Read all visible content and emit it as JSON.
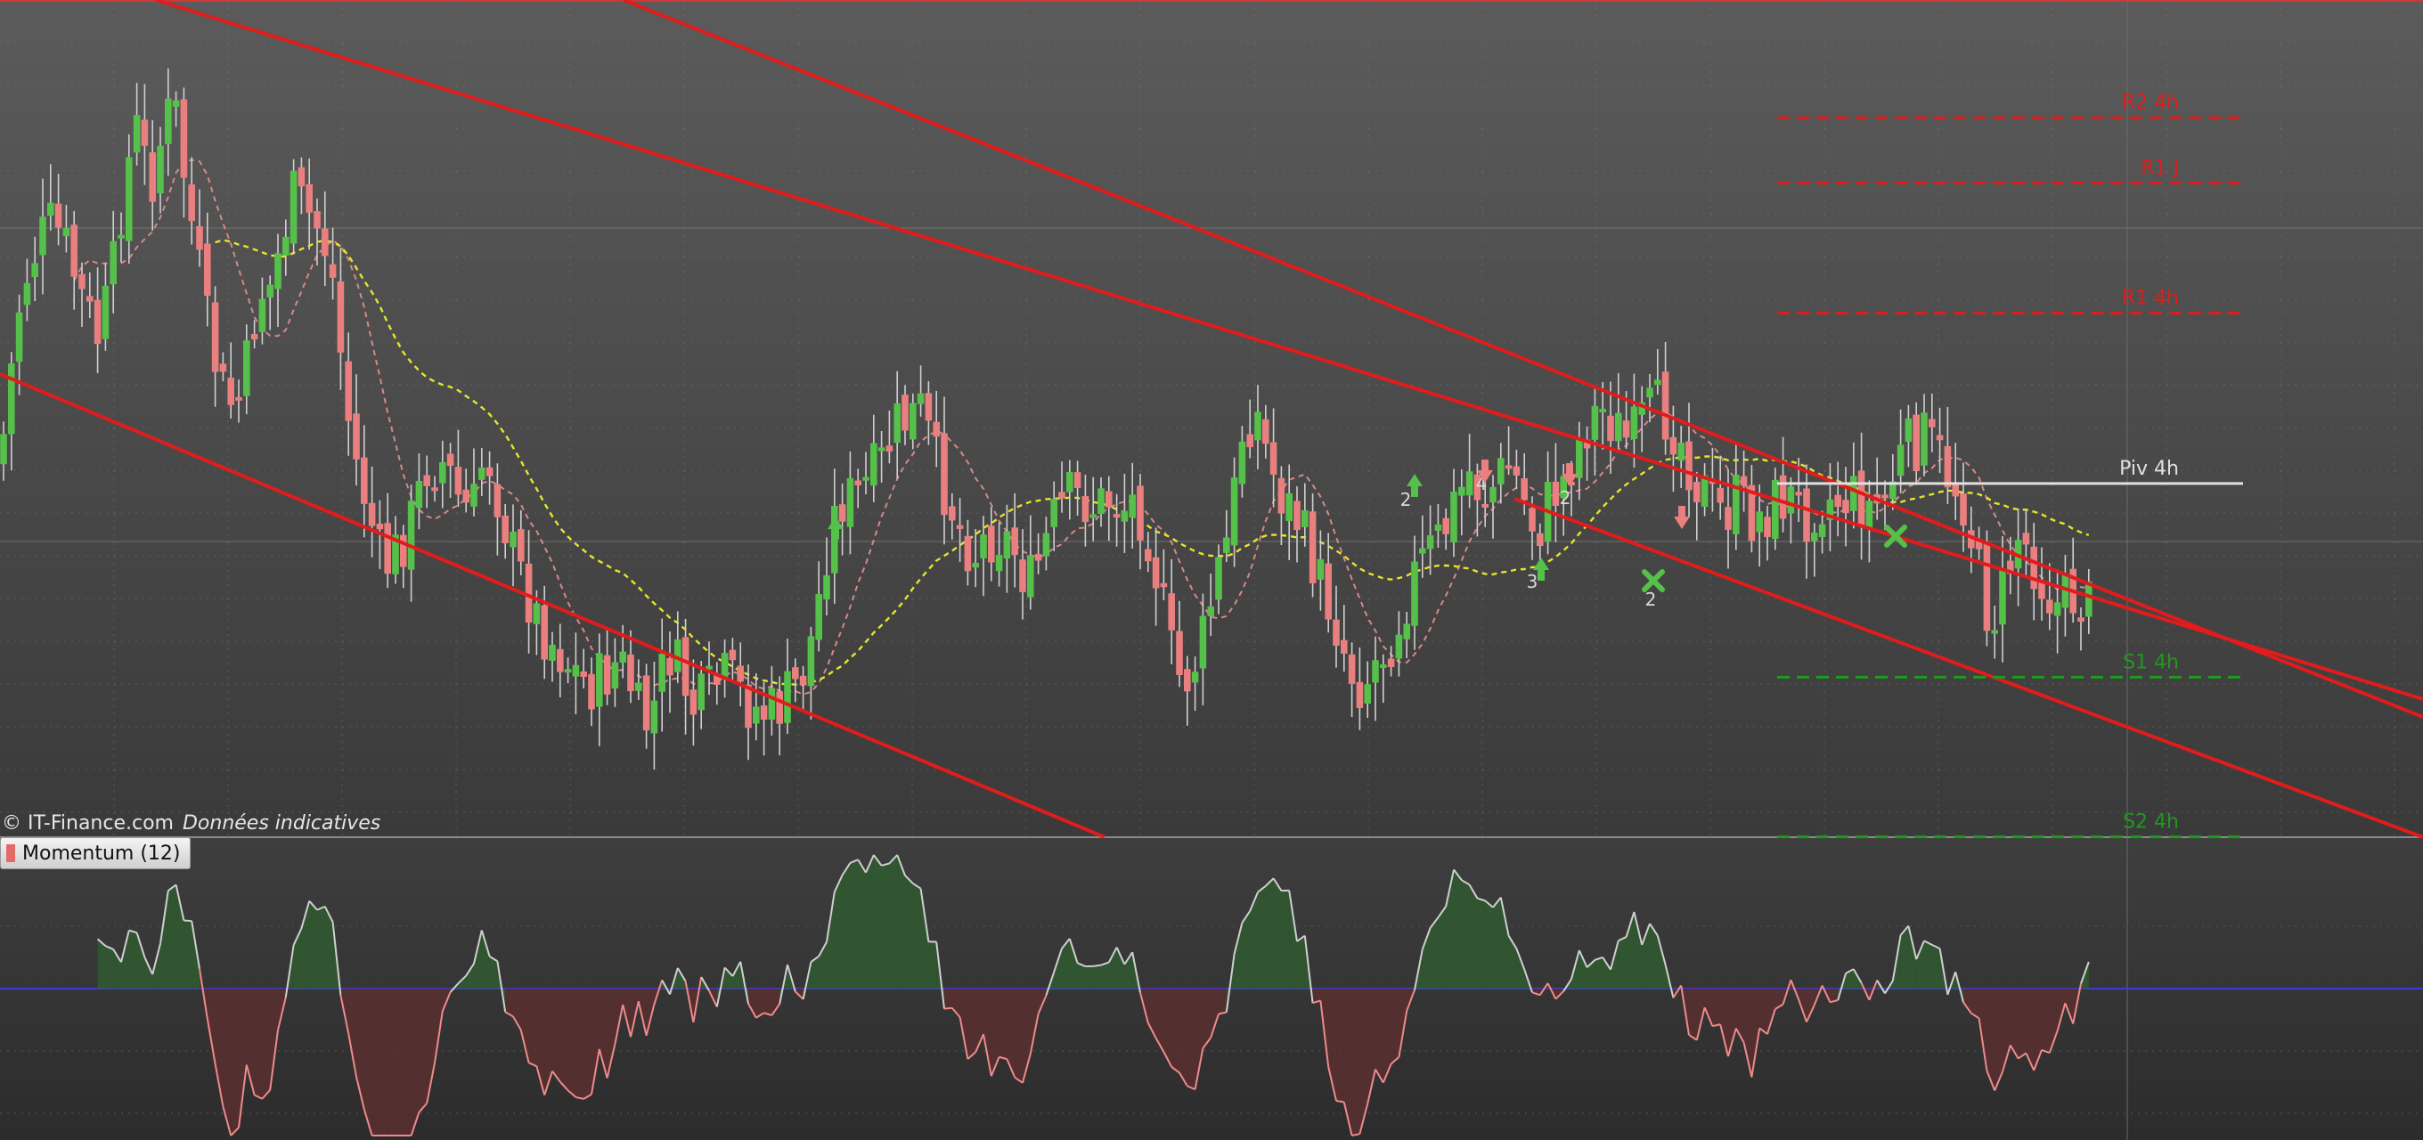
{
  "credit": {
    "brand": "© IT-Finance.com",
    "note": "Données indicatives"
  },
  "indicator": {
    "label": "Momentum (12)",
    "color": "#e46a6a"
  },
  "colors": {
    "up": "#55c04a",
    "down": "#e97f7f",
    "channel": "#e01c1c",
    "sma_fast": "#e5e52a",
    "sma_slow": "#d88888",
    "pivot": "#e0e0e0",
    "support": "#1e9a1e",
    "resistance": "#e01c1c",
    "zero_line": "#3c3cd8"
  },
  "chart_data": {
    "type": "candlestick",
    "price_ylim": [
      0,
      540
    ],
    "levels": [
      {
        "name": "R2 4h",
        "value": 76,
        "style": "dashed",
        "color": "#e01c1c"
      },
      {
        "name": "R1 J",
        "value": 118,
        "style": "dashed",
        "color": "#e01c1c"
      },
      {
        "name": "R1 4h",
        "value": 202,
        "style": "dashed",
        "color": "#e01c1c"
      },
      {
        "name": "Piv 4h",
        "value": 312,
        "style": "solid",
        "color": "#e0e0e0"
      },
      {
        "name": "S1 4h",
        "value": 437,
        "style": "dashed",
        "color": "#1e9a1e"
      },
      {
        "name": "S2 4h",
        "value": 540,
        "style": "dashed",
        "color": "#1e9a1e"
      }
    ],
    "markers": [
      {
        "type": "number",
        "text": "2",
        "bar": 150
      },
      {
        "type": "number",
        "text": "4",
        "bar": 158
      },
      {
        "type": "number",
        "text": "2",
        "bar": 167
      },
      {
        "type": "number",
        "text": "3",
        "bar": 164
      },
      {
        "type": "number",
        "text": "2",
        "bar": 176
      }
    ],
    "momentum_zero": 0,
    "grid": true
  }
}
